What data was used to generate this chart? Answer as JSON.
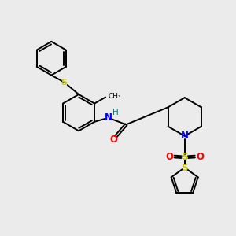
{
  "background_color": "#ebebeb",
  "bond_color": "#000000",
  "S_color": "#cccc00",
  "N_color": "#0000ff",
  "O_color": "#ff0000",
  "H_color": "#008080",
  "figsize": [
    3.0,
    3.0
  ],
  "dpi": 100,
  "xlim": [
    0,
    10
  ],
  "ylim": [
    0,
    10
  ]
}
